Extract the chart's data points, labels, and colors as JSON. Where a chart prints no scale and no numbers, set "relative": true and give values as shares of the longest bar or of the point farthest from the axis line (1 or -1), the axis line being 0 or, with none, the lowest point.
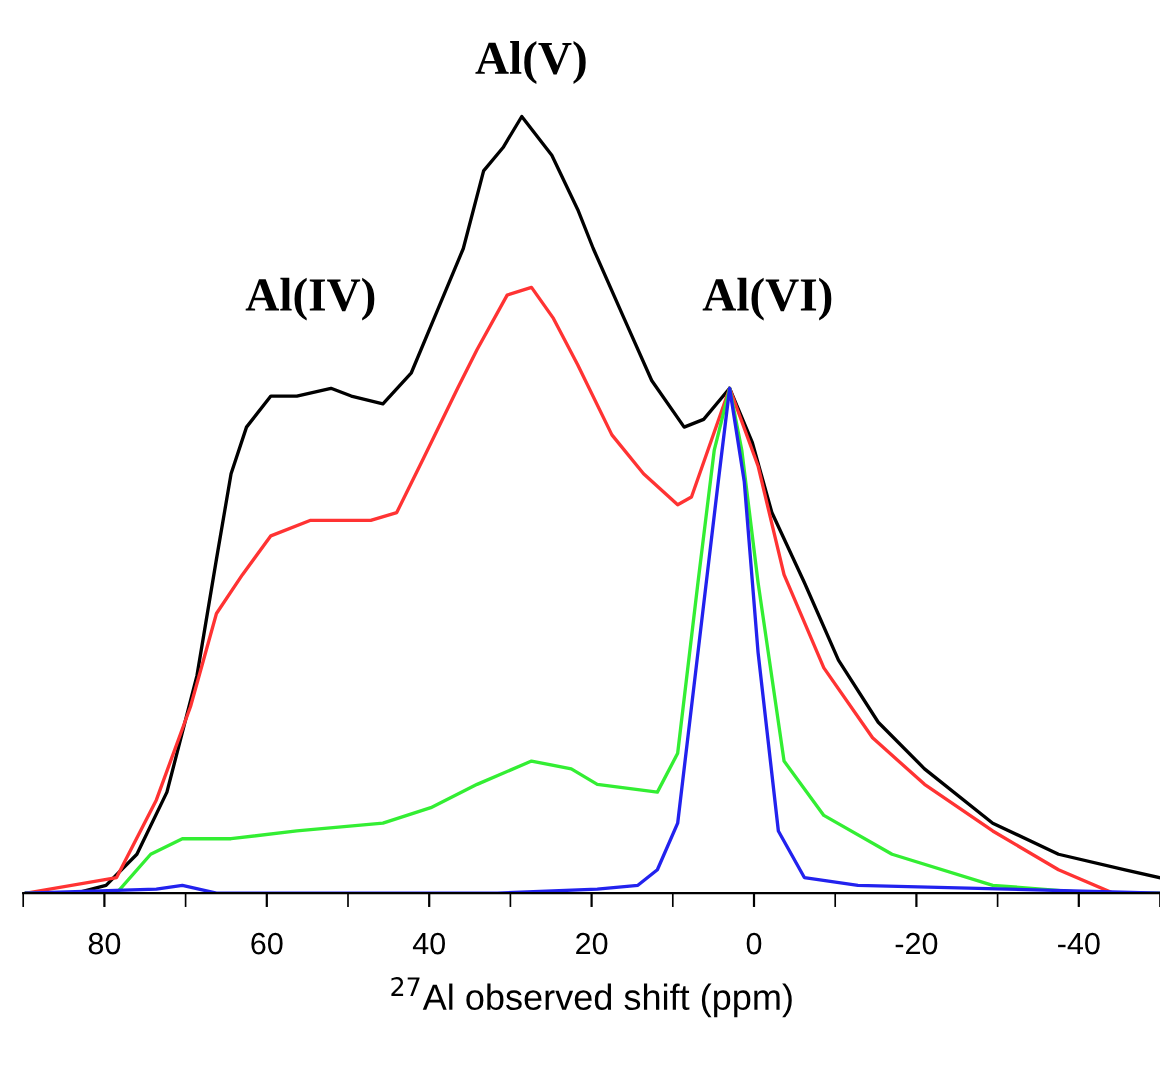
{
  "chart_data": {
    "type": "line",
    "relative": true,
    "xlabel": "$^{27}$Al observed shift (ppm)",
    "xlim": [
      90,
      -50
    ],
    "xticks": [
      80,
      60,
      40,
      20,
      0,
      {
        "value": -20,
        "label": "-20"
      },
      {
        "value": -40,
        "label": "-40"
      }
    ],
    "grid": false,
    "marker": "none",
    "line_style": "solid",
    "annotations": [
      "Al(IV)",
      "Al(V)",
      "Al(VI)"
    ],
    "series": [
      {
        "color": "#000000",
        "x": [
          89.6,
          83.5,
          79.8,
          76.0,
          72.3,
          68.6,
          66.2,
          64.4,
          62.5,
          59.5,
          56.3,
          52.1,
          49.6,
          45.7,
          42.2,
          39.0,
          35.8,
          33.3,
          30.9,
          28.6,
          24.9,
          21.7,
          19.8,
          16.0,
          12.6,
          8.6,
          6.2,
          3.0,
          0.2,
          -2.2,
          -6.2,
          -10.4,
          -15.3,
          -21.0,
          -29.4,
          -37.5,
          -45.7,
          -49.9
        ],
        "values": [
          0.0,
          0.0,
          0.01,
          0.05,
          0.13,
          0.28,
          0.43,
          0.54,
          0.6,
          0.64,
          0.64,
          0.65,
          0.64,
          0.63,
          0.67,
          0.75,
          0.83,
          0.93,
          0.96,
          1.0,
          0.95,
          0.88,
          0.83,
          0.74,
          0.66,
          0.6,
          0.61,
          0.65,
          0.58,
          0.49,
          0.4,
          0.3,
          0.22,
          0.16,
          0.09,
          0.05,
          0.03,
          0.02
        ]
      },
      {
        "color": "#ff3333",
        "x": [
          89.6,
          78.5,
          73.6,
          69.4,
          66.2,
          63.0,
          59.5,
          54.6,
          47.2,
          44.0,
          40.7,
          36.5,
          34.1,
          30.4,
          27.4,
          24.7,
          21.7,
          17.5,
          13.6,
          9.4,
          7.7,
          3.0,
          -0.5,
          -3.7,
          -8.6,
          -14.6,
          -21.0,
          -29.4,
          -37.5,
          -44.2,
          -49.9
        ],
        "values": [
          0.0,
          0.02,
          0.12,
          0.24,
          0.36,
          0.41,
          0.46,
          0.48,
          0.48,
          0.49,
          0.56,
          0.65,
          0.7,
          0.77,
          0.78,
          0.74,
          0.68,
          0.59,
          0.54,
          0.5,
          0.51,
          0.65,
          0.55,
          0.41,
          0.29,
          0.2,
          0.14,
          0.08,
          0.03,
          0.0,
          0.0
        ]
      },
      {
        "color": "#33ee33",
        "x": [
          89.6,
          78.5,
          74.3,
          70.4,
          64.4,
          56.3,
          45.7,
          39.8,
          34.1,
          27.4,
          22.5,
          19.3,
          11.9,
          9.4,
          6.9,
          4.9,
          3.0,
          1.5,
          -0.5,
          -3.7,
          -8.6,
          -17.0,
          -29.4,
          -41.7,
          -49.9
        ],
        "values": [
          0.0,
          0.0,
          0.05,
          0.07,
          0.07,
          0.08,
          0.09,
          0.11,
          0.14,
          0.17,
          0.16,
          0.14,
          0.13,
          0.18,
          0.4,
          0.57,
          0.65,
          0.57,
          0.4,
          0.17,
          0.1,
          0.05,
          0.01,
          0.0,
          0.0
        ]
      },
      {
        "color": "#2222ee",
        "x": [
          89.6,
          73.6,
          70.4,
          66.2,
          31.6,
          19.3,
          14.3,
          11.9,
          9.4,
          6.9,
          4.4,
          3.0,
          1.2,
          -0.5,
          -3.0,
          -6.2,
          -12.8,
          -49.9
        ],
        "values": [
          0.0,
          0.005,
          0.01,
          0.0,
          0.0,
          0.005,
          0.01,
          0.03,
          0.09,
          0.31,
          0.53,
          0.65,
          0.53,
          0.31,
          0.08,
          0.02,
          0.01,
          0.0
        ]
      }
    ]
  }
}
